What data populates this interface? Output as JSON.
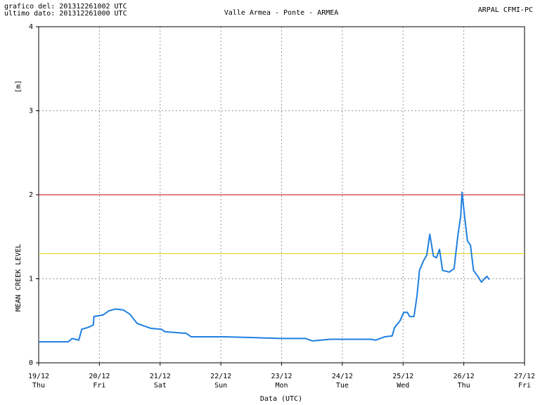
{
  "chart_data": {
    "type": "line",
    "title": "Valle Armea - Ponte - ARMEA",
    "header_left": [
      "grafico del: 201312261002 UTC",
      "ultimo dato: 201312261000 UTC"
    ],
    "header_right": "ARPAL CFMI-PC",
    "y_unit_label": "[m]",
    "y_label": "MEAN CREEK LEVEL",
    "x_label": "Data (UTC)",
    "xlim": [
      0,
      8
    ],
    "xticks": [
      {
        "value": 0,
        "label": "19/12"
      },
      {
        "value": 1,
        "label": "20/12"
      },
      {
        "value": 2,
        "label": "21/12"
      },
      {
        "value": 3,
        "label": "22/12"
      },
      {
        "value": 4,
        "label": "23/12"
      },
      {
        "value": 5,
        "label": "24/12"
      },
      {
        "value": 6,
        "label": "25/12"
      },
      {
        "value": 7,
        "label": "26/12"
      },
      {
        "value": 8,
        "label": "27/12"
      }
    ],
    "xtick_sublabels": [
      "Thu",
      "Fri",
      "Sat",
      "Sun",
      "Mon",
      "Tue",
      "Wed",
      "Thu",
      "Fri"
    ],
    "ylim": [
      0,
      4
    ],
    "yticks": [
      0,
      1,
      2,
      3,
      4
    ],
    "grid": true,
    "thresholds": [
      {
        "value": 2,
        "color": "#cc0000"
      },
      {
        "value": 1.3,
        "color": "#e0d000"
      }
    ],
    "series": [
      {
        "color": "#1f7fe0",
        "x": [
          0,
          0.49,
          0.55,
          0.66,
          0.71,
          0.81,
          0.9,
          0.91,
          1.06,
          1.16,
          1.27,
          1.39,
          1.5,
          1.62,
          1.73,
          1.85,
          2.02,
          2.08,
          2.43,
          2.51,
          2.72,
          3.06,
          3.53,
          3.99,
          4.39,
          4.51,
          4.8,
          5.14,
          5.47,
          5.55,
          5.7,
          5.82,
          5.86,
          5.95,
          6.01,
          6.07,
          6.11,
          6.18,
          6.23,
          6.27,
          6.34,
          6.39,
          6.44,
          6.5,
          6.55,
          6.6,
          6.65,
          6.76,
          6.84,
          6.9,
          6.95,
          6.97,
          7.02,
          7.06,
          7.11,
          7.16,
          7.23,
          7.29,
          7.34,
          7.38,
          7.42
        ],
        "values": [
          0.25,
          0.25,
          0.29,
          0.27,
          0.4,
          0.42,
          0.45,
          0.55,
          0.57,
          0.62,
          0.64,
          0.63,
          0.58,
          0.47,
          0.44,
          0.41,
          0.4,
          0.37,
          0.35,
          0.31,
          0.31,
          0.31,
          0.3,
          0.29,
          0.29,
          0.26,
          0.28,
          0.28,
          0.28,
          0.27,
          0.31,
          0.32,
          0.42,
          0.5,
          0.6,
          0.6,
          0.55,
          0.55,
          0.8,
          1.1,
          1.22,
          1.28,
          1.53,
          1.27,
          1.25,
          1.35,
          1.1,
          1.08,
          1.12,
          1.5,
          1.75,
          2.03,
          1.7,
          1.45,
          1.4,
          1.1,
          1.03,
          0.96,
          1.0,
          1.03,
          0.99
        ]
      }
    ]
  }
}
